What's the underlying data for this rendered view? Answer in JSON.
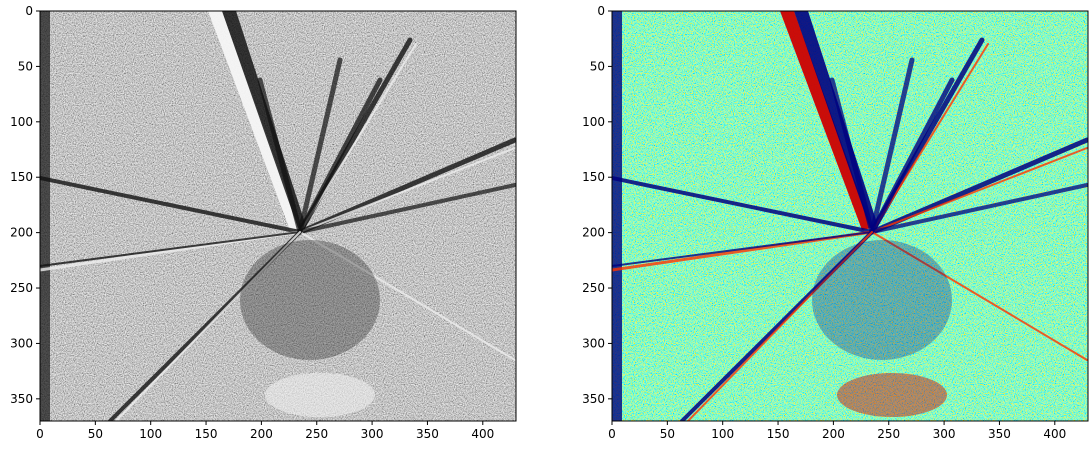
{
  "panels": [
    {
      "colormap": "gray",
      "x_ticks": [
        "0",
        "50",
        "100",
        "150",
        "200",
        "250",
        "300",
        "350",
        "400"
      ],
      "y_ticks": [
        "0",
        "50",
        "100",
        "150",
        "200",
        "250",
        "300",
        "350"
      ]
    },
    {
      "colormap": "jet",
      "x_ticks": [
        "0",
        "50",
        "100",
        "150",
        "200",
        "250",
        "300",
        "350",
        "400"
      ],
      "y_ticks": [
        "0",
        "50",
        "100",
        "150",
        "200",
        "250",
        "300",
        "350"
      ]
    }
  ],
  "image": {
    "width_units": 430,
    "height_units": 370,
    "x_tick_values": [
      0,
      50,
      100,
      150,
      200,
      250,
      300,
      350,
      400
    ],
    "y_tick_values": [
      0,
      50,
      100,
      150,
      200,
      250,
      300,
      350
    ]
  },
  "colors": {
    "gray_low": "#0a0a0a",
    "gray_high": "#f5f5f5",
    "jet_low": "#00007f",
    "jet_high": "#7f0000"
  }
}
